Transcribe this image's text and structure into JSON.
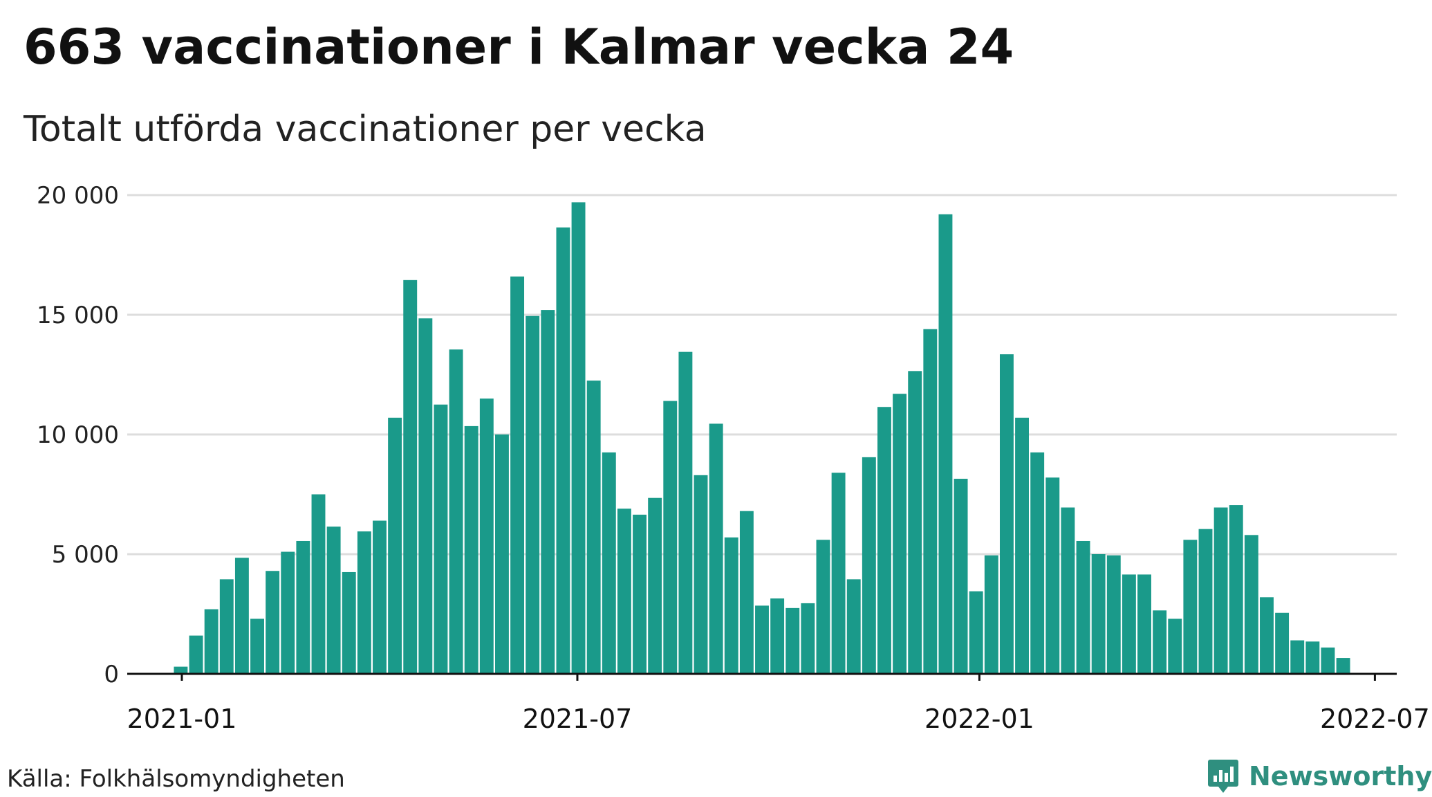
{
  "title": "663 vaccinationer i Kalmar vecka 24",
  "subtitle": "Totalt utförda vaccinationer per vecka",
  "source": "Källa: Folkhälsomyndigheten",
  "brand": "Newsworthy",
  "colors": {
    "bar": "#1a9a8a",
    "grid": "#dddddd",
    "axis": "#111111",
    "brand": "#2f8f7f"
  },
  "chart_data": {
    "type": "bar",
    "title": "Totalt utförda vaccinationer per vecka",
    "xlabel": "",
    "ylabel": "",
    "ylim": [
      0,
      20000
    ],
    "yticks": [
      0,
      5000,
      10000,
      15000,
      20000
    ],
    "ytick_labels": [
      "0",
      "5 000",
      "10 000",
      "15 000",
      "20 000"
    ],
    "xlim": [
      "2020-12-07",
      "2022-07-11"
    ],
    "xticks": [
      "2021-01-01",
      "2021-07-01",
      "2022-01-01",
      "2022-07-01"
    ],
    "xtick_labels": [
      "2021-01",
      "2021-07",
      "2022-01",
      "2022-07"
    ],
    "grid": true,
    "categories": [
      "2020-12-28",
      "2021-01-04",
      "2021-01-11",
      "2021-01-18",
      "2021-01-25",
      "2021-02-01",
      "2021-02-08",
      "2021-02-15",
      "2021-02-22",
      "2021-03-01",
      "2021-03-08",
      "2021-03-15",
      "2021-03-22",
      "2021-03-29",
      "2021-04-05",
      "2021-04-12",
      "2021-04-19",
      "2021-04-26",
      "2021-05-03",
      "2021-05-10",
      "2021-05-17",
      "2021-05-24",
      "2021-05-31",
      "2021-06-07",
      "2021-06-14",
      "2021-06-21",
      "2021-06-28",
      "2021-07-05",
      "2021-07-12",
      "2021-07-19",
      "2021-07-26",
      "2021-08-02",
      "2021-08-09",
      "2021-08-16",
      "2021-08-23",
      "2021-08-30",
      "2021-09-06",
      "2021-09-13",
      "2021-09-20",
      "2021-09-27",
      "2021-10-04",
      "2021-10-11",
      "2021-10-18",
      "2021-10-25",
      "2021-11-01",
      "2021-11-08",
      "2021-11-15",
      "2021-11-22",
      "2021-11-29",
      "2021-12-06",
      "2021-12-13",
      "2021-12-20",
      "2021-12-27",
      "2022-01-03",
      "2022-01-10",
      "2022-01-17",
      "2022-01-24",
      "2022-01-31",
      "2022-02-07",
      "2022-02-14",
      "2022-02-21",
      "2022-02-28",
      "2022-03-07",
      "2022-03-14",
      "2022-03-21",
      "2022-03-28",
      "2022-04-04",
      "2022-04-11",
      "2022-04-18",
      "2022-04-25",
      "2022-05-02",
      "2022-05-09",
      "2022-05-16",
      "2022-05-23",
      "2022-05-30",
      "2022-06-06",
      "2022-06-13"
    ],
    "values": [
      300,
      1600,
      2700,
      3950,
      4850,
      2300,
      4300,
      5100,
      5550,
      7500,
      6150,
      4250,
      5950,
      6400,
      10700,
      16450,
      14850,
      11250,
      13550,
      10350,
      11500,
      10000,
      16600,
      14950,
      15200,
      18650,
      19700,
      12250,
      9250,
      6900,
      6650,
      7350,
      11400,
      13450,
      8300,
      10450,
      5700,
      6800,
      2850,
      3150,
      2750,
      2950,
      5600,
      8400,
      3950,
      9050,
      11150,
      11700,
      12650,
      14400,
      19200,
      8150,
      3450,
      4950,
      13350,
      10700,
      9250,
      8200,
      6950,
      5550,
      5000,
      4950,
      4150,
      4150,
      2650,
      2300,
      5600,
      6050,
      6950,
      7050,
      5800,
      3200,
      2550,
      1400,
      1350,
      1100,
      663
    ]
  }
}
